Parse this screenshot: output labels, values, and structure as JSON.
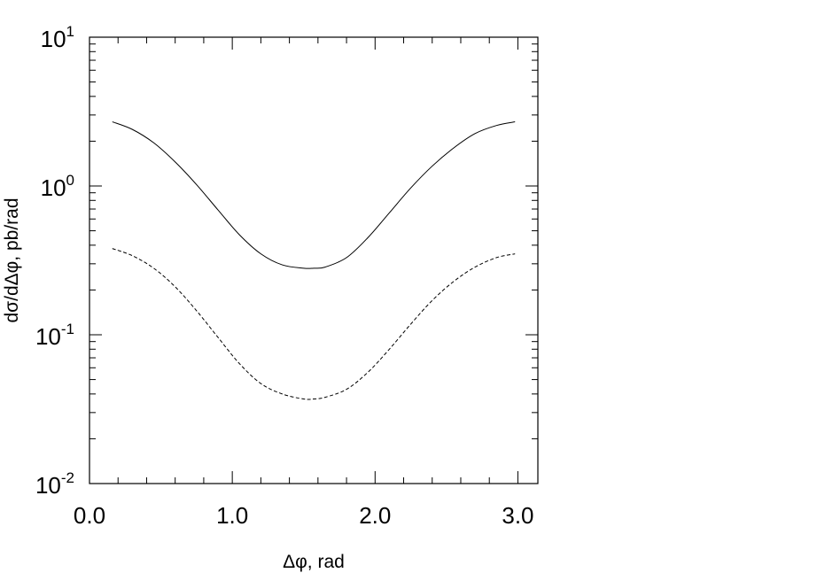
{
  "chart_data": {
    "type": "line",
    "title": "",
    "xlabel": "Δφ, rad",
    "ylabel": "dσ/dΔφ, pb/rad",
    "xlim": [
      0.0,
      3.14
    ],
    "ylim": [
      0.01,
      10
    ],
    "yscale": "log",
    "grid": false,
    "legend": "none",
    "x_ticks": [
      {
        "value": 0.0,
        "label": "0.0"
      },
      {
        "value": 1.0,
        "label": "1.0"
      },
      {
        "value": 2.0,
        "label": "2.0"
      },
      {
        "value": 3.0,
        "label": "3.0"
      }
    ],
    "y_ticks": [
      {
        "value": 10,
        "base": "10",
        "exp": "1"
      },
      {
        "value": 1,
        "base": "10",
        "exp": "0"
      },
      {
        "value": 0.1,
        "base": "10",
        "exp": "-1"
      },
      {
        "value": 0.01,
        "base": "10",
        "exp": "-2"
      }
    ],
    "series": [
      {
        "style": "solid",
        "color": "#000000",
        "x": [
          0.16,
          0.3,
          0.45,
          0.6,
          0.75,
          0.9,
          1.05,
          1.2,
          1.35,
          1.5,
          1.57,
          1.65,
          1.8,
          1.95,
          2.1,
          2.25,
          2.4,
          2.55,
          2.7,
          2.85,
          2.98
        ],
        "y": [
          2.7,
          2.4,
          1.95,
          1.45,
          1.02,
          0.69,
          0.47,
          0.35,
          0.295,
          0.28,
          0.28,
          0.285,
          0.33,
          0.45,
          0.66,
          0.97,
          1.36,
          1.8,
          2.25,
          2.55,
          2.7
        ]
      },
      {
        "style": "dashed",
        "color": "#000000",
        "x": [
          0.16,
          0.3,
          0.45,
          0.6,
          0.75,
          0.9,
          1.05,
          1.2,
          1.35,
          1.5,
          1.57,
          1.65,
          1.8,
          1.95,
          2.1,
          2.25,
          2.4,
          2.55,
          2.7,
          2.85,
          2.98
        ],
        "y": [
          0.38,
          0.34,
          0.28,
          0.21,
          0.145,
          0.096,
          0.064,
          0.047,
          0.04,
          0.037,
          0.037,
          0.038,
          0.043,
          0.056,
          0.08,
          0.118,
          0.17,
          0.228,
          0.285,
          0.33,
          0.35
        ]
      }
    ]
  }
}
